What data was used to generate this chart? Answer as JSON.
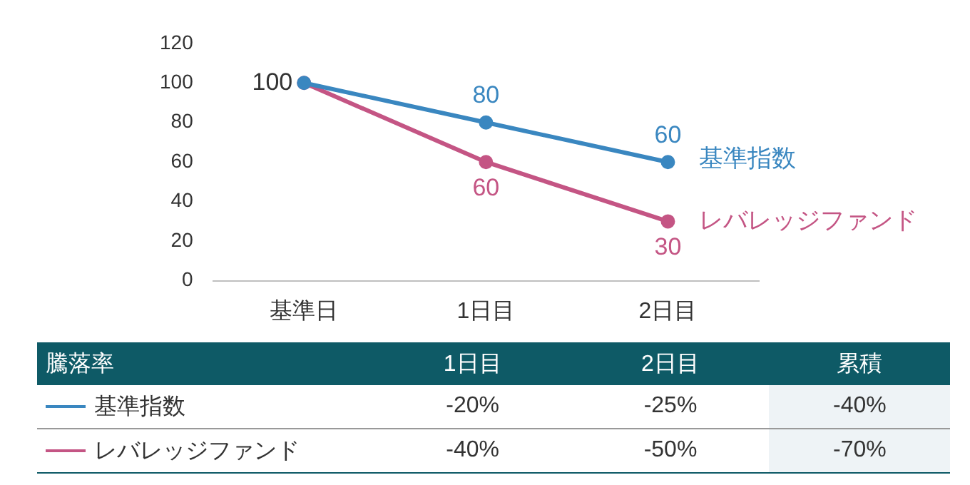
{
  "chart_data": [
    {
      "type": "line",
      "categories": [
        "基準日",
        "1日目",
        "2日目"
      ],
      "series": [
        {
          "name": "基準指数",
          "color": "#3a87c0",
          "values": [
            100,
            80,
            60
          ],
          "value_labels": [
            "100",
            "80",
            "60"
          ]
        },
        {
          "name": "レバレッジファンド",
          "color": "#c45584",
          "values": [
            100,
            60,
            30
          ],
          "value_labels": [
            null,
            "60",
            "30"
          ]
        }
      ],
      "ylim": [
        0,
        120
      ],
      "yticks": [
        0,
        20,
        40,
        60,
        80,
        100,
        120
      ],
      "grid": false,
      "legend": false,
      "marker": "circle",
      "line_style": "solid"
    },
    {
      "type": "other",
      "title": "騰落率",
      "categories": [
        "1日目",
        "2日目",
        "累積"
      ],
      "y_categories": [
        "基準指数",
        "レバレッジファンド"
      ],
      "cell_labels": [
        [
          "-20%",
          "-25%",
          "-40%"
        ],
        [
          "-40%",
          "-50%",
          "-70%"
        ]
      ]
    }
  ]
}
